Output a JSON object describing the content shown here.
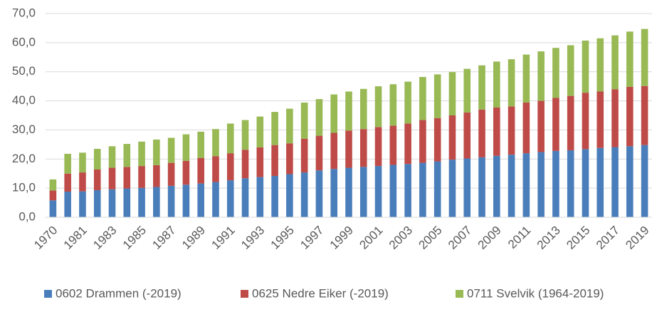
{
  "chart_data": {
    "type": "stacked_bar",
    "categories": [
      "1970",
      null,
      "1981",
      null,
      "1983",
      null,
      "1985",
      null,
      "1987",
      null,
      "1989",
      null,
      "1991",
      null,
      "1993",
      null,
      "1995",
      null,
      "1997",
      null,
      "1999",
      null,
      "2001",
      null,
      "2003",
      null,
      "2005",
      null,
      "2007",
      null,
      "2009",
      null,
      "2011",
      null,
      "2013",
      null,
      "2015",
      null,
      "2017",
      null,
      "2019"
    ],
    "series": [
      {
        "name": "0602 Drammen (-2019)",
        "color": "#4a7ebb",
        "values": [
          5.8,
          8.8,
          8.9,
          9.3,
          9.6,
          9.9,
          10.1,
          10.4,
          10.8,
          11.2,
          11.6,
          12.1,
          12.7,
          13.4,
          13.8,
          14.2,
          14.8,
          15.4,
          16.1,
          16.6,
          17.0,
          17.3,
          17.6,
          18.0,
          18.3,
          18.7,
          19.2,
          19.8,
          20.2,
          20.6,
          21.1,
          21.5,
          22.0,
          22.4,
          22.8,
          23.0,
          23.4,
          23.8,
          24.1,
          24.4,
          24.8
        ]
      },
      {
        "name": "0625 Nedre Eiker (-2019)",
        "color": "#be4b48",
        "values": [
          3.4,
          6.2,
          6.5,
          7.1,
          7.4,
          7.4,
          7.5,
          7.5,
          7.9,
          8.2,
          8.8,
          8.9,
          9.3,
          9.8,
          10.2,
          10.6,
          10.6,
          11.6,
          11.9,
          12.4,
          12.8,
          13.0,
          13.4,
          13.5,
          13.9,
          14.7,
          14.9,
          15.2,
          15.8,
          16.4,
          16.6,
          16.6,
          17.4,
          17.6,
          18.2,
          18.7,
          19.4,
          19.4,
          19.9,
          20.4,
          20.3
        ]
      },
      {
        "name": "0711 Svelvik (1964-2019)",
        "color": "#98b954",
        "values": [
          3.8,
          6.8,
          6.8,
          7.1,
          7.4,
          7.9,
          8.4,
          8.8,
          8.6,
          9.1,
          9.0,
          9.3,
          10.2,
          10.2,
          10.6,
          11.4,
          11.9,
          12.4,
          12.6,
          13.2,
          13.4,
          13.8,
          14.0,
          14.2,
          14.4,
          14.8,
          15.0,
          14.9,
          15.0,
          15.2,
          15.8,
          16.2,
          16.5,
          17.0,
          17.2,
          17.4,
          17.9,
          18.3,
          18.5,
          19.0,
          19.6
        ]
      }
    ],
    "ylim": [
      0,
      70
    ],
    "yticks": [
      {
        "value": 0,
        "label": "0,0"
      },
      {
        "value": 10,
        "label": "10,0"
      },
      {
        "value": 20,
        "label": "20,0"
      },
      {
        "value": 30,
        "label": "30,0"
      },
      {
        "value": 40,
        "label": "40,0"
      },
      {
        "value": 50,
        "label": "50,0"
      },
      {
        "value": 60,
        "label": "60,0"
      },
      {
        "value": 70,
        "label": "70,0"
      }
    ],
    "grid": true,
    "legend": "bottom"
  }
}
